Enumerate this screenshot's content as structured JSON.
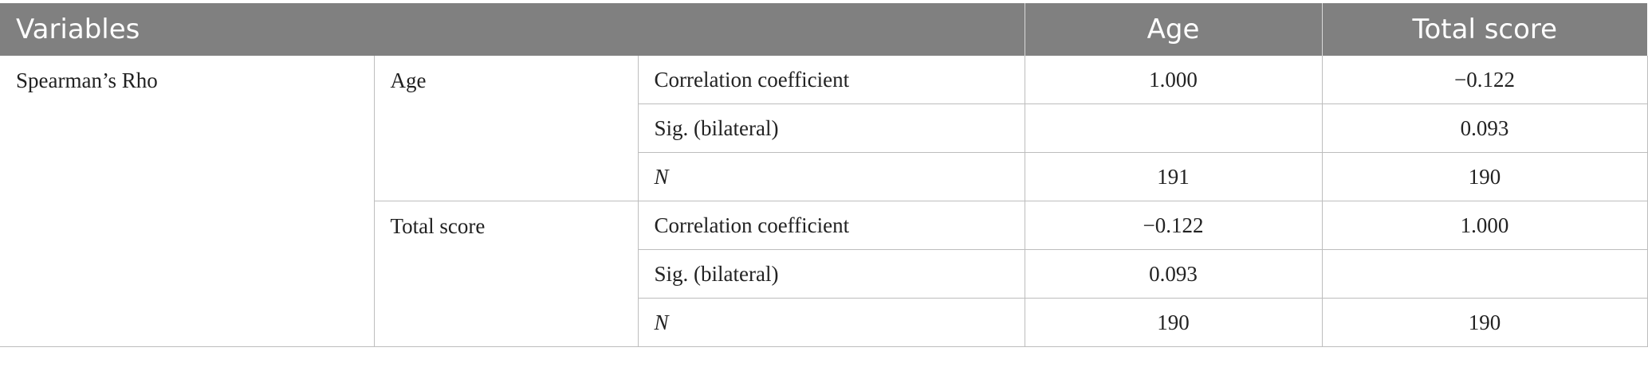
{
  "header": {
    "variables": "Variables",
    "age": "Age",
    "total_score": "Total score"
  },
  "rows": {
    "method": "Spearman’s Rho",
    "age_group": {
      "label": "Age",
      "correlation": {
        "label": "Correlation coefficient",
        "age": "1.000",
        "total": "−0.122"
      },
      "sig": {
        "label": "Sig. (bilateral)",
        "age": "",
        "total": "0.093"
      },
      "n": {
        "label": "N",
        "age": "191",
        "total": "190"
      }
    },
    "total_group": {
      "label": "Total score",
      "correlation": {
        "label": "Correlation coefficient",
        "age": "−0.122",
        "total": "1.000"
      },
      "sig": {
        "label": "Sig. (bilateral)",
        "age": "0.093",
        "total": ""
      },
      "n": {
        "label": "N",
        "age": "190",
        "total": "190"
      }
    }
  }
}
